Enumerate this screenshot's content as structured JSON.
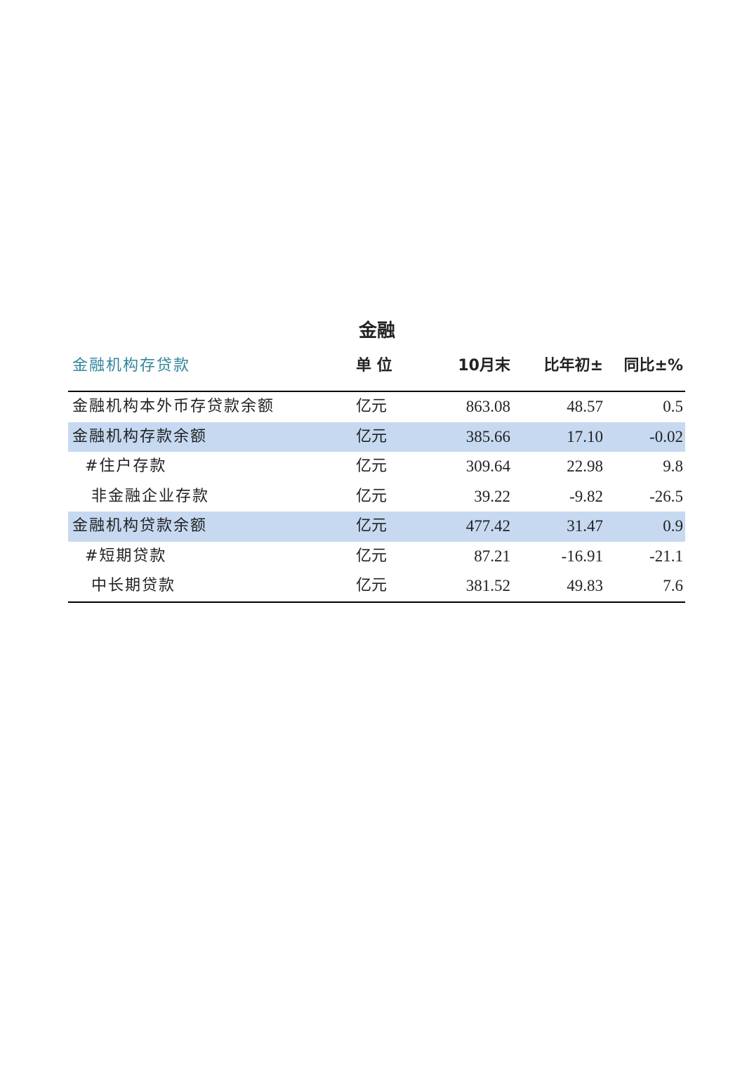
{
  "title": "金融",
  "header": {
    "label": "金融机构存贷款",
    "unit": "单 位",
    "col1": "10月末",
    "col2": "比年初±",
    "col3": "同比±%"
  },
  "colors": {
    "header_label": "#31859c",
    "highlight": "#c6d9f1"
  },
  "rows": [
    {
      "label": "金融机构本外币存贷款余额",
      "unit": "亿元",
      "v1": "863.08",
      "v2": "48.57",
      "v3": "0.5",
      "highlight": false
    },
    {
      "label": "金融机构存款余额",
      "unit": "亿元",
      "v1": "385.66",
      "v2": "17.10",
      "v3": "-0.02",
      "highlight": true
    },
    {
      "label": "  #住户存款",
      "unit": "亿元",
      "v1": "309.64",
      "v2": "22.98",
      "v3": "9.8",
      "highlight": false
    },
    {
      "label": "   非金融企业存款",
      "unit": "亿元",
      "v1": "39.22",
      "v2": "-9.82",
      "v3": "-26.5",
      "highlight": false
    },
    {
      "label": "金融机构贷款余额",
      "unit": "亿元",
      "v1": "477.42",
      "v2": "31.47",
      "v3": "0.9",
      "highlight": true
    },
    {
      "label": "  #短期贷款",
      "unit": "亿元",
      "v1": "87.21",
      "v2": "-16.91",
      "v3": "-21.1",
      "highlight": false
    },
    {
      "label": "   中长期贷款",
      "unit": "亿元",
      "v1": "381.52",
      "v2": "49.83",
      "v3": "7.6",
      "highlight": false
    }
  ]
}
